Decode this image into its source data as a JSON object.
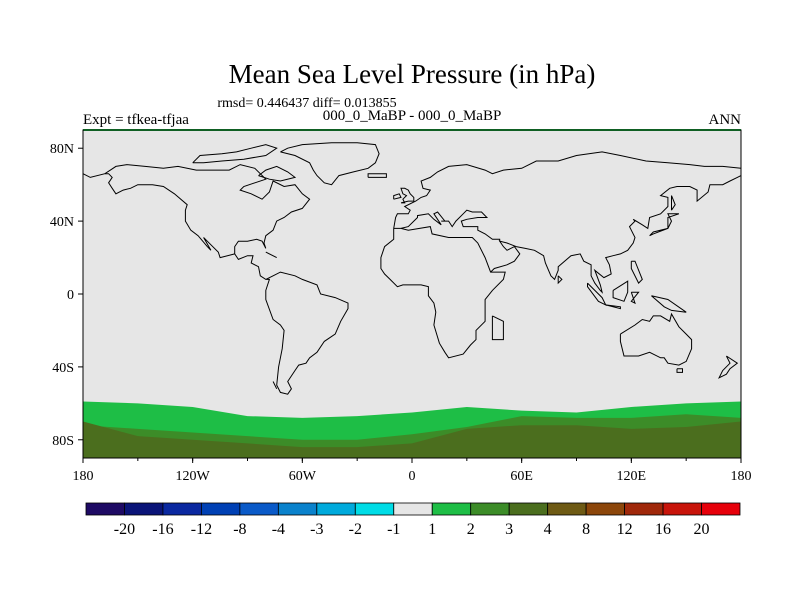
{
  "chart_data": {
    "type": "heatmap",
    "title": "Mean Sea Level Pressure (in hPa)",
    "stats_line": "rmsd= 0.446437 diff= 0.013855",
    "subtitle": "000_0_MaBP - 000_0_MaBP",
    "left_label": "Expt = tfkea-tfjaa",
    "right_label": "ANN",
    "x_ticks": [
      "180",
      "120W",
      "60W",
      "0",
      "60E",
      "120E",
      "180"
    ],
    "y_ticks": [
      "80N",
      "40N",
      "0",
      "40S",
      "80S"
    ],
    "xlim": [
      -180,
      180
    ],
    "ylim": [
      -90,
      90
    ],
    "colorbar": {
      "labels": [
        "-20",
        "-16",
        "-12",
        "-8",
        "-4",
        "-3",
        "-2",
        "-1",
        "1",
        "2",
        "3",
        "4",
        "8",
        "12",
        "16",
        "20"
      ],
      "colors": [
        "#1e0a64",
        "#0a1478",
        "#0a28a0",
        "#0040b4",
        "#0a5ac8",
        "#0a82cc",
        "#00aadc",
        "#00dce6",
        "#e6e6e6",
        "#1ebe46",
        "#3c8c28",
        "#4b6e1e",
        "#6e5a14",
        "#8c460a",
        "#a0280a",
        "#c8140a",
        "#e6000a"
      ]
    },
    "field": {
      "background_color": "#e6e6e6",
      "bands": [
        {
          "bin": "2",
          "color": "#1ebe46",
          "lon": [
            -180,
            -150,
            -120,
            -90,
            -60,
            -30,
            0,
            30,
            60,
            90,
            120,
            150,
            180
          ],
          "lat_north": [
            -59,
            -60,
            -62,
            -67,
            -68,
            -67,
            -65,
            -62,
            -64,
            -65,
            -62,
            -60,
            -59
          ]
        },
        {
          "bin": "3",
          "color": "#3c8c28",
          "lon": [
            -180,
            -150,
            -120,
            -90,
            -60,
            -30,
            0,
            30,
            60,
            90,
            120,
            150,
            180
          ],
          "lat_north": [
            -72,
            -74,
            -76,
            -78,
            -80,
            -80,
            -77,
            -73,
            -67,
            -68,
            -68,
            -66,
            -68
          ]
        },
        {
          "bin": "4",
          "color": "#4b6e1e",
          "lon": [
            -180,
            -150,
            -120,
            -90,
            -60,
            -30,
            0,
            30,
            60,
            90,
            120,
            150,
            180
          ],
          "lat_north": [
            -70,
            -78,
            -80,
            -82,
            -84,
            -84,
            -82,
            -74,
            -72,
            -72,
            -74,
            -73,
            -70
          ]
        }
      ]
    }
  }
}
